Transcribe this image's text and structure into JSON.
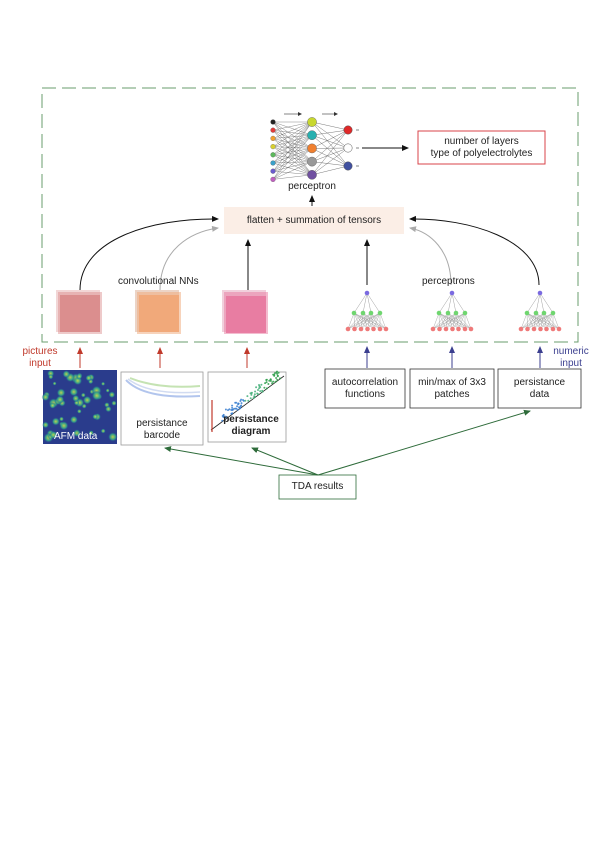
{
  "top": {
    "perceptron_label": "perceptron",
    "output_lines": [
      "number of layers",
      "type of polyelectrolytes"
    ]
  },
  "combine": {
    "label": "flatten + summation of tensors"
  },
  "branches": {
    "cnn_label": "convolutional NNs",
    "perceptrons_label": "perceptrons"
  },
  "inputs": {
    "pictures_label": [
      "pictures",
      "input"
    ],
    "numeric_label": [
      "numeric",
      "input"
    ],
    "afm": "AFM data",
    "barcode": [
      "persistance",
      "barcode"
    ],
    "diagram": [
      "persistance",
      "diagram"
    ],
    "autocorr": [
      "autocorrelation",
      "functions"
    ],
    "minmax": [
      "min/max of 3x3",
      "patches"
    ],
    "pers_data": [
      "persistance",
      "data"
    ]
  },
  "tda": {
    "label": "TDA results"
  },
  "colors": {
    "red_arrow": "#c0392b",
    "blue_arrow": "#3b3f8f",
    "green_arrow": "#2e6b3a",
    "dashed_border": "#6a9c6e",
    "combine_fill": "#fbeee6",
    "output_border": "#d9434a",
    "cnn_left": "#d98a8a",
    "cnn_mid": "#f0a878",
    "cnn_right": "#e87aa0"
  }
}
